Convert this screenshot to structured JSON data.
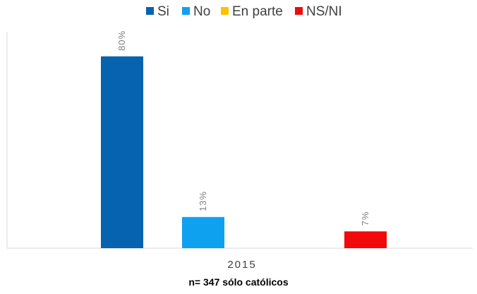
{
  "chart_data": {
    "type": "bar",
    "categories": [
      "2015"
    ],
    "series": [
      {
        "name": "Si",
        "values": [
          80
        ],
        "label": "80%",
        "color": "#0563AF"
      },
      {
        "name": "No",
        "values": [
          13
        ],
        "label": "13%",
        "color": "#0EA1F0"
      },
      {
        "name": "En parte",
        "values": [
          0
        ],
        "label": "",
        "color": "#FFC000"
      },
      {
        "name": "NS/NI",
        "values": [
          7
        ],
        "label": "7%",
        "color": "#F20A0A"
      }
    ],
    "ylim": [
      0,
      80
    ],
    "legend_position": "top",
    "grid": false,
    "footnote": "n= 347 sólo católicos"
  }
}
